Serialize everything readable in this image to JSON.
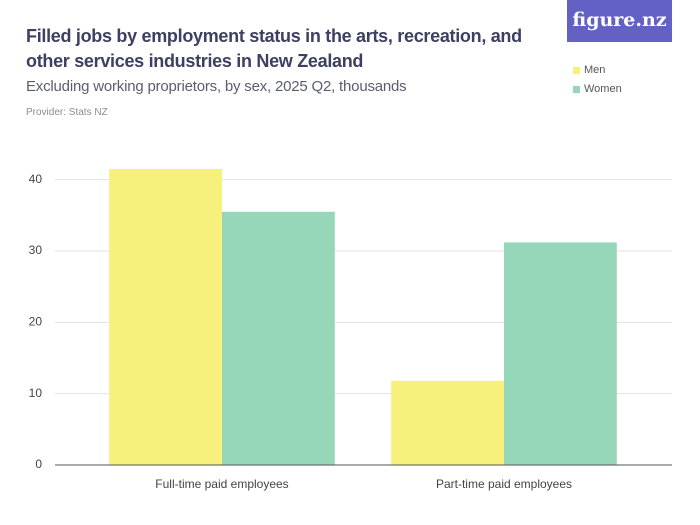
{
  "logo": "figure.nz",
  "chart_data": {
    "type": "bar",
    "title": "Filled jobs by employment status in the arts, recreation, and other services industries in New Zealand",
    "subtitle": "Excluding working proprietors, by sex, 2025 Q2, thousands",
    "provider": "Provider: Stats NZ",
    "categories": [
      "Full-time paid employees",
      "Part-time paid employees"
    ],
    "series": [
      {
        "name": "Men",
        "color": "#f7f07c",
        "values": [
          41.5,
          11.8
        ]
      },
      {
        "name": "Women",
        "color": "#97d7b9",
        "values": [
          35.5,
          31.2
        ]
      }
    ],
    "ylim": [
      0,
      45
    ],
    "yticks": [
      0,
      10,
      20,
      30,
      40
    ],
    "grid": true,
    "legend": "top-right"
  }
}
